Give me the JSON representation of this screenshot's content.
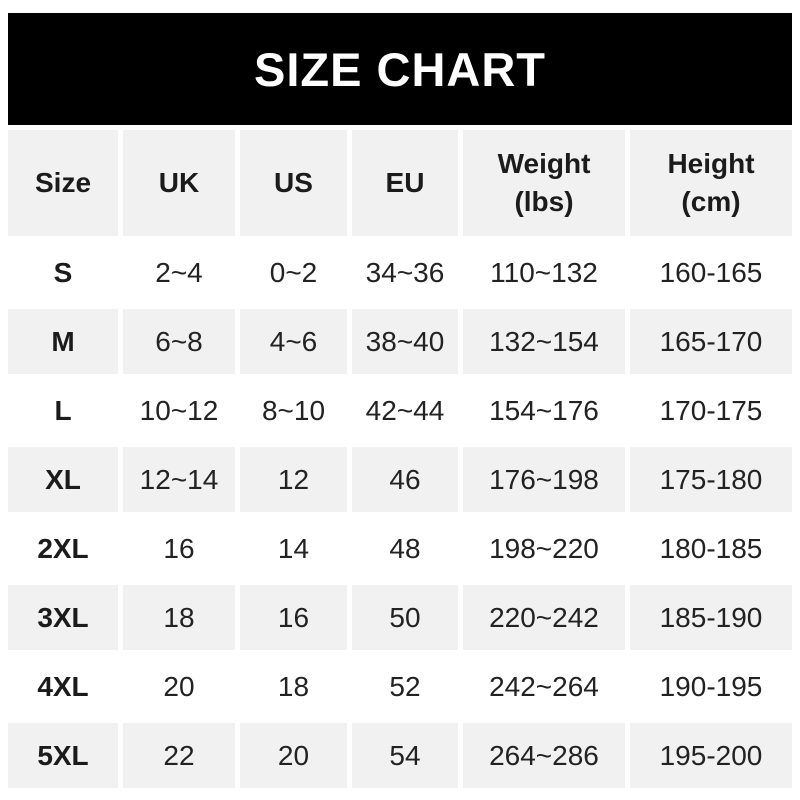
{
  "banner": {
    "title": "SIZE CHART"
  },
  "chart_data": {
    "type": "table",
    "title": "SIZE CHART",
    "columns": [
      "Size",
      "UK",
      "US",
      "EU",
      "Weight\n(lbs)",
      "Height\n(cm)"
    ],
    "rows": [
      [
        "S",
        "2~4",
        "0~2",
        "34~36",
        "110~132",
        "160-165"
      ],
      [
        "M",
        "6~8",
        "4~6",
        "38~40",
        "132~154",
        "165-170"
      ],
      [
        "L",
        "10~12",
        "8~10",
        "42~44",
        "154~176",
        "170-175"
      ],
      [
        "XL",
        "12~14",
        "12",
        "46",
        "176~198",
        "175-180"
      ],
      [
        "2XL",
        "16",
        "14",
        "48",
        "198~220",
        "180-185"
      ],
      [
        "3XL",
        "18",
        "16",
        "50",
        "220~242",
        "185-190"
      ],
      [
        "4XL",
        "20",
        "18",
        "52",
        "242~264",
        "190-195"
      ],
      [
        "5XL",
        "22",
        "20",
        "54",
        "264~286",
        "195-200"
      ]
    ],
    "layout": {
      "alternating_row_colors": true,
      "first_data_row_bg": "white"
    }
  },
  "colors": {
    "banner_bg": "#000000",
    "banner_text": "#ffffff",
    "row_alt_bg": "#f1f1f2",
    "row_bg": "#ffffff",
    "text": "#1c1c1c"
  }
}
